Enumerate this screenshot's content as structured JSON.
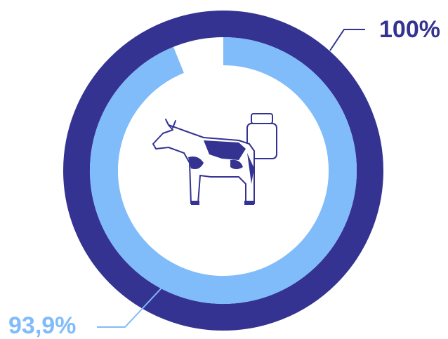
{
  "chart_data": {
    "type": "radial",
    "values": [
      100,
      93.9
    ],
    "value_labels": [
      "100%",
      "93,9%"
    ],
    "colors": [
      "#343391",
      "#80bbfa"
    ],
    "ylim": [
      0,
      100
    ]
  }
}
